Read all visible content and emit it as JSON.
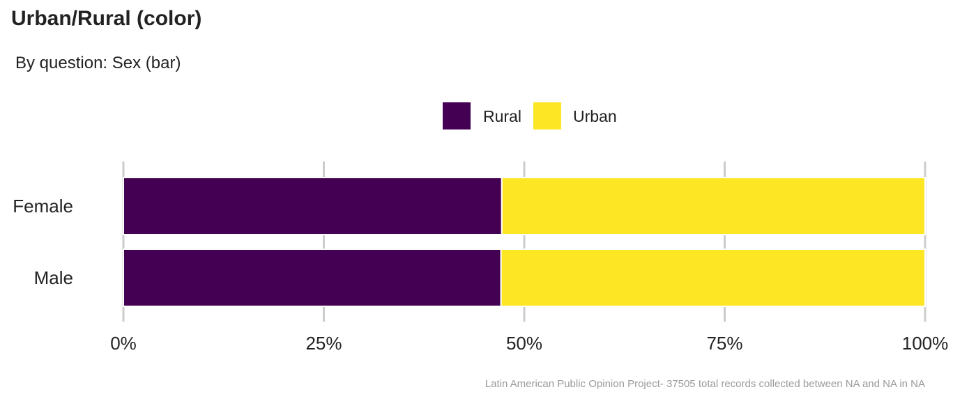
{
  "title": "Urban/Rural (color)",
  "subtitle": "By question: Sex (bar)",
  "caption": "Latin American Public Opinion Project- 37505 total records collected between NA and NA in  NA",
  "chart_data": {
    "type": "bar",
    "orientation": "horizontal",
    "stacked": true,
    "normalized": true,
    "categories": [
      "Female",
      "Male"
    ],
    "series": [
      {
        "name": "Rural",
        "color": "#440154",
        "values": [
          47.2,
          47.1
        ]
      },
      {
        "name": "Urban",
        "color": "#FDE725",
        "values": [
          52.8,
          52.9
        ]
      }
    ],
    "xlim": [
      0,
      100
    ],
    "xticks": [
      0,
      25,
      50,
      75,
      100
    ],
    "xtick_labels": [
      "0%",
      "25%",
      "50%",
      "75%",
      "100%"
    ],
    "grid": "vertical",
    "legend_position": "top-center",
    "title": "Urban/Rural (color)",
    "subtitle": "By question: Sex (bar)"
  }
}
